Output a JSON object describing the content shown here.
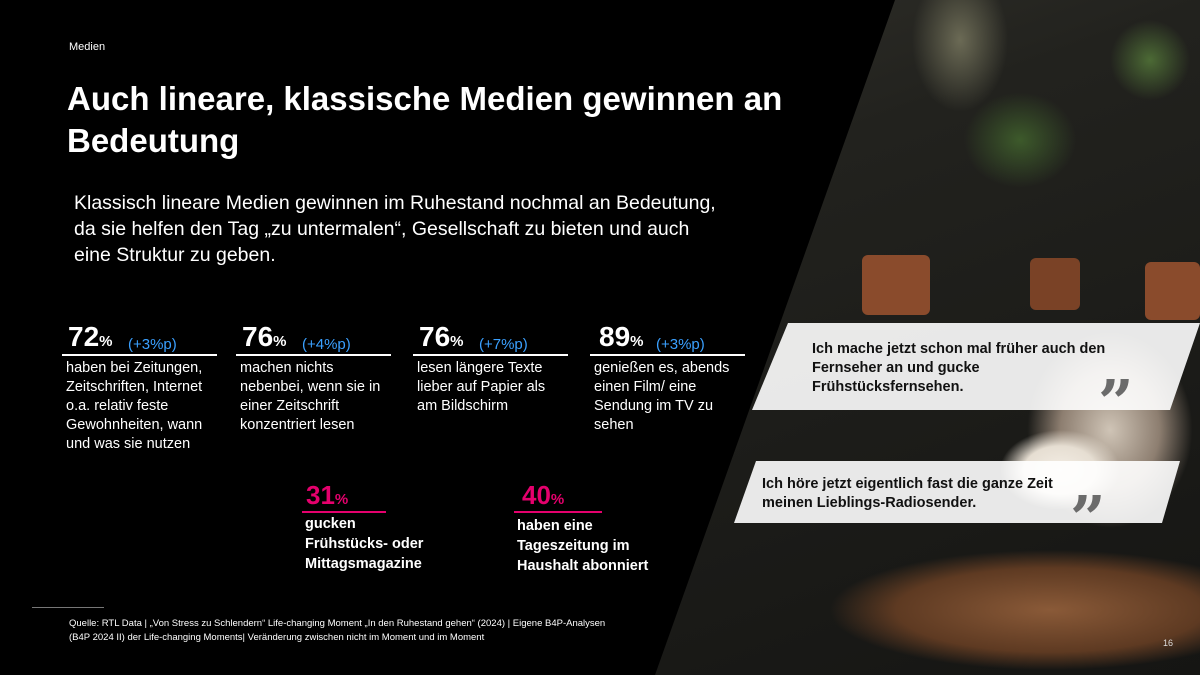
{
  "header": {
    "section": "Medien",
    "title": "Auch lineare, klassische Medien gewinnen an Bedeutung",
    "intro": "Klassisch lineare Medien gewinnen im Ruhestand nochmal an Bedeutung, da sie helfen den Tag „zu untermalen“, Gesellschaft zu bieten und auch eine Struktur zu geben."
  },
  "stats": [
    {
      "value": "72",
      "unit": "%",
      "delta": "(+3%p)",
      "text": "haben bei Zeitungen, Zeitschriften, Internet o.a. relativ feste Gewohnheiten, wann und was sie nutzen"
    },
    {
      "value": "76",
      "unit": "%",
      "delta": "(+4%p)",
      "text": "machen nichts nebenbei, wenn sie in einer Zeitschrift konzentriert lesen"
    },
    {
      "value": "76",
      "unit": "%",
      "delta": "(+7%p)",
      "text": "lesen längere Texte lieber auf Papier als am Bildschirm"
    },
    {
      "value": "89",
      "unit": "%",
      "delta": "(+3%p)",
      "text": "genießen es, abends einen Film/ eine Sendung im TV zu sehen"
    }
  ],
  "highlights": [
    {
      "value": "31",
      "unit": "%",
      "text": "gucken Frühstücks- oder Mittagsmagazine"
    },
    {
      "value": "40",
      "unit": "%",
      "text": "haben eine Tageszeitung im Haushalt abonniert"
    }
  ],
  "quotes": [
    {
      "text": "Ich mache jetzt schon mal früher auch den Fernseher an und gucke Frühstücksfernsehen.",
      "mark": "”"
    },
    {
      "text": "Ich höre jetzt eigentlich fast die ganze Zeit meinen Lieblings-Radiosender.",
      "mark": "”"
    }
  ],
  "footer": {
    "source": "Quelle: RTL Data |  „Von Stress zu Schlendern“ Life-changing Moment „In den Ruhestand gehen“ (2024) | Eigene B4P-Analysen (B4P 2024 II) der Life-changing Moments| Veränderung zwischen nicht im Moment und im Moment",
    "page": "16"
  },
  "colors": {
    "background": "#000000",
    "accent_delta": "#3aa0ff",
    "accent_highlight": "#e5006d"
  }
}
